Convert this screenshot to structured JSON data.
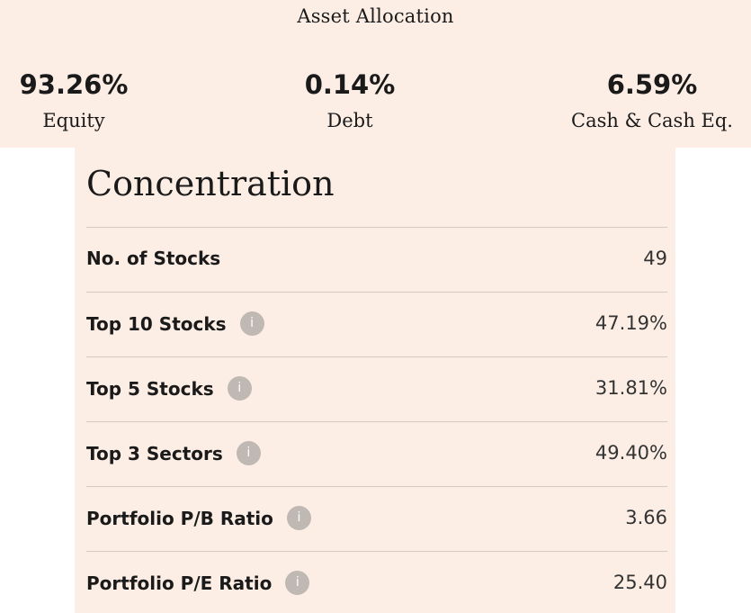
{
  "asset_allocation": {
    "title": "Asset Allocation",
    "stats": [
      {
        "value": "93.26%",
        "label": "Equity"
      },
      {
        "value": "0.14%",
        "label": "Debt"
      },
      {
        "value": "6.59%",
        "label": "Cash & Cash Eq."
      }
    ]
  },
  "concentration": {
    "title": "Concentration",
    "rows": [
      {
        "label": "No. of Stocks",
        "value": "49",
        "info": false
      },
      {
        "label": "Top 10 Stocks",
        "value": "47.19%",
        "info": true
      },
      {
        "label": "Top 5 Stocks",
        "value": "31.81%",
        "info": true
      },
      {
        "label": "Top 3 Sectors",
        "value": "49.40%",
        "info": true
      },
      {
        "label": "Portfolio P/B Ratio",
        "value": "3.66",
        "info": true
      },
      {
        "label": "Portfolio P/E Ratio",
        "value": "25.40",
        "info": true
      }
    ],
    "info_glyph": "i",
    "info_icon_name": "info-icon"
  },
  "colors": {
    "panel_background": "#fdeee5",
    "info_icon": "#bfb8b3",
    "divider": "#d3c8c2"
  }
}
